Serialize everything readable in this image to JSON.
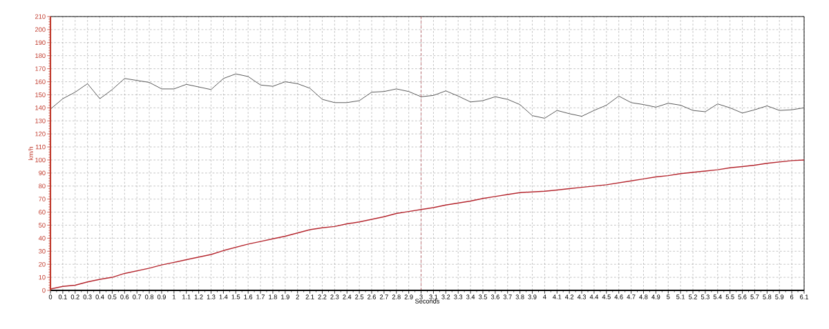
{
  "chart_data": {
    "type": "line",
    "xlabel": "Seconds",
    "ylabel": "km/h",
    "x": [
      0,
      0.1,
      0.2,
      0.3,
      0.4,
      0.5,
      0.6,
      0.7,
      0.8,
      0.9,
      1,
      1.1,
      1.2,
      1.3,
      1.4,
      1.5,
      1.6,
      1.7,
      1.8,
      1.9,
      2,
      2.1,
      2.2,
      2.3,
      2.4,
      2.5,
      2.6,
      2.7,
      2.8,
      2.9,
      3,
      3.1,
      3.2,
      3.3,
      3.4,
      3.5,
      3.6,
      3.7,
      3.8,
      3.9,
      4,
      4.1,
      4.2,
      4.3,
      4.4,
      4.5,
      4.6,
      4.7,
      4.8,
      4.9,
      5,
      5.1,
      5.2,
      5.3,
      5.4,
      5.5,
      5.6,
      5.7,
      5.8,
      5.9,
      6,
      6.1
    ],
    "series": [
      {
        "color": "#5a5a5a",
        "values": [
          139,
          147,
          152,
          158.5,
          147,
          154,
          162.5,
          161,
          159.5,
          154.5,
          154.5,
          158,
          156,
          154,
          162.5,
          166,
          164,
          157.5,
          156.5,
          160,
          158.5,
          155,
          146.5,
          144,
          144,
          145.5,
          152,
          152.5,
          154.5,
          152.5,
          148.5,
          149.5,
          153,
          149,
          144.5,
          145.5,
          148.5,
          146.5,
          142.5,
          134,
          132,
          138,
          135.5,
          133.5,
          138,
          142,
          149,
          144,
          142.5,
          140.5,
          143.5,
          142,
          138,
          137,
          143,
          140,
          136,
          138.5,
          141.5,
          138,
          138.5,
          140
        ]
      },
      {
        "color": "#b5262e",
        "values": [
          1,
          3,
          4,
          6.5,
          8.5,
          10,
          13,
          15,
          17,
          19.5,
          21.5,
          23.5,
          25.5,
          27.5,
          30.5,
          33,
          35.5,
          37.5,
          39.5,
          41.5,
          44,
          46.5,
          48,
          49,
          51,
          52.5,
          54.5,
          56.5,
          59,
          60.5,
          62,
          63.5,
          65.5,
          67,
          68.5,
          70.5,
          72,
          73.5,
          75,
          75.5,
          76,
          77,
          78,
          79,
          80,
          81,
          82.5,
          84,
          85.5,
          87,
          88,
          89.5,
          90.5,
          91.5,
          92.5,
          94,
          95,
          96,
          97.5,
          98.5,
          99.5,
          100
        ]
      }
    ],
    "xlim": [
      0,
      6.1
    ],
    "ylim": [
      0,
      210
    ],
    "xticks": [
      0,
      0.1,
      0.2,
      0.3,
      0.4,
      0.5,
      0.6,
      0.7,
      0.8,
      0.9,
      1,
      1.1,
      1.2,
      1.3,
      1.4,
      1.5,
      1.6,
      1.7,
      1.8,
      1.9,
      2,
      2.1,
      2.2,
      2.3,
      2.4,
      2.5,
      2.6,
      2.7,
      2.8,
      2.9,
      3,
      3.1,
      3.2,
      3.3,
      3.4,
      3.5,
      3.6,
      3.7,
      3.8,
      3.9,
      4,
      4.1,
      4.2,
      4.3,
      4.4,
      4.5,
      4.6,
      4.7,
      4.8,
      4.9,
      5,
      5.1,
      5.2,
      5.3,
      5.4,
      5.5,
      5.6,
      5.7,
      5.8,
      5.9,
      6,
      6.1
    ],
    "yticks": [
      0,
      10,
      20,
      30,
      40,
      50,
      60,
      70,
      80,
      90,
      100,
      110,
      120,
      130,
      140,
      150,
      160,
      170,
      180,
      190,
      200,
      210
    ],
    "grid": true,
    "ref_lines": [
      {
        "axis": "x",
        "value": 3,
        "color": "#a8323a",
        "line_style": "dashed"
      }
    ]
  }
}
